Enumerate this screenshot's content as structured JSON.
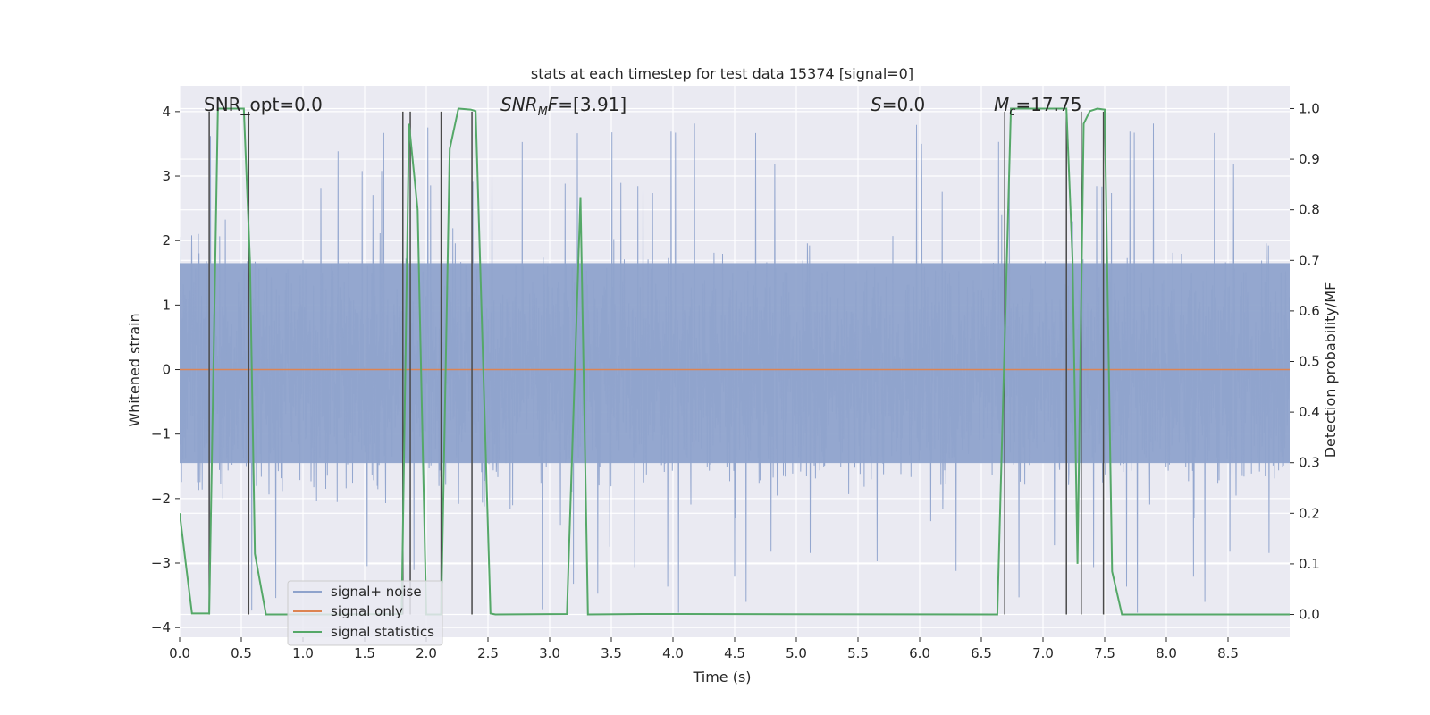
{
  "chart_data": {
    "type": "line",
    "title": "stats at each timestep for test data 15374 [signal=0]",
    "xlabel": "Time (s)",
    "ylabel": "Whitened strain",
    "ylabel_right": "Detection probability/MF",
    "xlim": [
      0,
      9.0
    ],
    "ylim": [
      -4.15,
      4.4
    ],
    "ylim_right": [
      -0.045,
      1.045
    ],
    "x_ticks": [
      0,
      0.5,
      1.0,
      1.5,
      2.0,
      2.5,
      3.0,
      3.5,
      4.0,
      4.5,
      5.0,
      5.5,
      6.0,
      6.5,
      7.0,
      7.5,
      8.0,
      8.5
    ],
    "x_tick_labels": [
      "0.0",
      "0.5",
      "1.0",
      "1.5",
      "2.0",
      "2.5",
      "3.0",
      "3.5",
      "4.0",
      "4.5",
      "5.0",
      "5.5",
      "6.0",
      "6.5",
      "7.0",
      "7.5",
      "8.0",
      "8.5"
    ],
    "y_ticks": [
      -4,
      -3,
      -2,
      -1,
      0,
      1,
      2,
      3,
      4
    ],
    "y_tick_labels": [
      "−4",
      "−3",
      "−2",
      "−1",
      "0",
      "1",
      "2",
      "3",
      "4"
    ],
    "y_ticks_right": [
      0,
      0.1,
      0.2,
      0.3,
      0.4,
      0.5,
      0.6,
      0.7,
      0.8,
      0.9,
      1.0
    ],
    "y_tick_labels_right": [
      "0.0",
      "0.1",
      "0.2",
      "0.3",
      "0.4",
      "0.5",
      "0.6",
      "0.7",
      "0.8",
      "0.9",
      "1.0"
    ],
    "grid": true,
    "legend_position": "lower-left",
    "annotations": [
      {
        "text": "SNR_opt=0.0",
        "x": 0.2
      },
      {
        "text": "SNR_MF=[3.91]",
        "x": 2.6
      },
      {
        "text": "S=0.0",
        "x": 5.6
      },
      {
        "text": "M_c=17.75",
        "x": 6.6
      }
    ],
    "series": [
      {
        "name": "signal+ noise",
        "color": "#8fa3cc",
        "note": "dense whitened noise trace, roughly within ±2.5 with spikes up to ±4",
        "envelope_high": 1.65,
        "envelope_low": -1.45
      },
      {
        "name": "signal only",
        "color": "#dd8452",
        "x": [
          0,
          9.0
        ],
        "y": [
          0,
          0
        ]
      },
      {
        "name": "signal statistics",
        "color": "#55a868",
        "axis": "right",
        "x": [
          0.0,
          0.05,
          0.1,
          0.24,
          0.31,
          0.38,
          0.52,
          0.57,
          0.61,
          0.7,
          1.2,
          1.8,
          1.86,
          1.93,
          2.0,
          2.12,
          2.19,
          2.26,
          2.36,
          2.4,
          2.52,
          2.56,
          3.14,
          3.25,
          3.31,
          3.75,
          6.63,
          6.74,
          6.82,
          7.19,
          7.24,
          7.28,
          7.33,
          7.38,
          7.44,
          7.5,
          7.56,
          7.64,
          7.8,
          9.0
        ],
        "y": [
          0.2,
          0.1,
          0.002,
          0.002,
          1.0,
          1.0,
          1.0,
          0.7,
          0.12,
          0.0,
          0.0,
          0.001,
          0.97,
          0.8,
          0.0,
          0.0,
          0.92,
          1.0,
          0.998,
          0.995,
          0.002,
          0.0,
          0.001,
          0.825,
          0.0,
          0.001,
          0.0,
          1.0,
          1.0,
          1.0,
          0.7,
          0.1,
          0.97,
          0.995,
          1.0,
          0.998,
          0.085,
          0.0,
          0.0,
          0.0
        ]
      }
    ],
    "vertical_markers": {
      "color": "#4a4a4a",
      "x": [
        0.24,
        0.56,
        1.81,
        1.87,
        2.12,
        2.37,
        6.69,
        7.19,
        7.31,
        7.49
      ]
    }
  }
}
